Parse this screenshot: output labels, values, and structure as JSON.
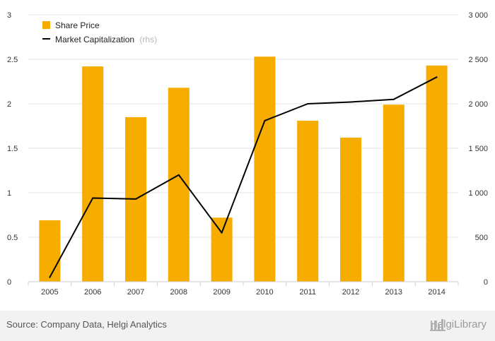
{
  "chart_data": {
    "type": "bar",
    "categories": [
      "2005",
      "2006",
      "2007",
      "2008",
      "2009",
      "2010",
      "2011",
      "2012",
      "2013",
      "2014"
    ],
    "series": [
      {
        "name": "Share Price",
        "type": "bar",
        "axis": "left",
        "color": "#f7ac00",
        "values": [
          0.69,
          2.42,
          1.85,
          2.18,
          0.72,
          2.53,
          1.81,
          1.62,
          1.99,
          2.43
        ]
      },
      {
        "name": "Market Capitalization",
        "type": "line",
        "axis": "right",
        "color": "#000000",
        "values": [
          50,
          940,
          930,
          1200,
          550,
          1810,
          2000,
          2020,
          2050,
          2300
        ]
      }
    ],
    "y_left": {
      "ylim": [
        0,
        3
      ],
      "ticks": [
        "0",
        "0.5",
        "1",
        "1.5",
        "2",
        "2.5",
        "3"
      ]
    },
    "y_right": {
      "ylim": [
        0,
        3000
      ],
      "ticks": [
        "0",
        "500",
        "1 000",
        "1 500",
        "2 000",
        "2 500",
        "3 000"
      ]
    },
    "legend": {
      "placement": "top-left",
      "items": [
        {
          "label": "Share Price",
          "suffix": ""
        },
        {
          "label": "Market Capitalization",
          "suffix": "(rhs)"
        }
      ]
    },
    "grid": true
  },
  "footer": {
    "source": "Source: Company Data, Helgi Analytics",
    "brand": "HelgiLibrary"
  }
}
